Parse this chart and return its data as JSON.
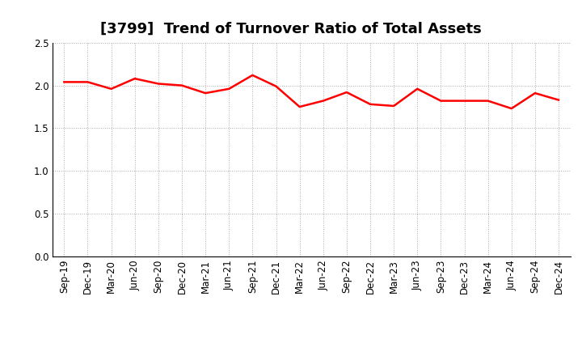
{
  "title": "[3799]  Trend of Turnover Ratio of Total Assets",
  "labels": [
    "Sep-19",
    "Dec-19",
    "Mar-20",
    "Jun-20",
    "Sep-20",
    "Dec-20",
    "Mar-21",
    "Jun-21",
    "Sep-21",
    "Dec-21",
    "Mar-22",
    "Jun-22",
    "Sep-22",
    "Dec-22",
    "Mar-23",
    "Jun-23",
    "Sep-23",
    "Dec-23",
    "Mar-24",
    "Jun-24",
    "Sep-24",
    "Dec-24"
  ],
  "values": [
    2.04,
    2.04,
    1.96,
    2.08,
    2.02,
    2.0,
    1.91,
    1.96,
    2.12,
    1.99,
    1.75,
    1.82,
    1.92,
    1.78,
    1.76,
    1.96,
    1.82,
    1.82,
    1.82,
    1.73,
    1.91,
    1.83
  ],
  "line_color": "#FF0000",
  "line_width": 1.8,
  "ylim": [
    0.0,
    2.5
  ],
  "yticks": [
    0.0,
    0.5,
    1.0,
    1.5,
    2.0,
    2.5
  ],
  "background_color": "#ffffff",
  "grid_color": "#aaaaaa",
  "title_fontsize": 13,
  "tick_fontsize": 8.5
}
